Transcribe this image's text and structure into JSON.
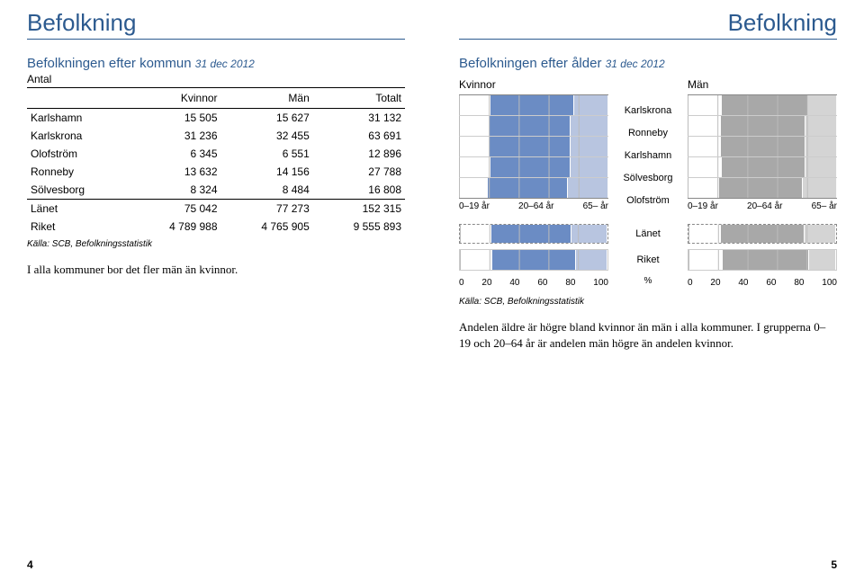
{
  "header_left": "Befolkning",
  "header_right": "Befolkning",
  "left": {
    "section_title": "Befolkningen efter kommun",
    "date": "31 dec 2012",
    "subtitle": "Antal",
    "columns": [
      "",
      "Kvinnor",
      "Män",
      "Totalt"
    ],
    "rows": [
      [
        "Karlshamn",
        "15 505",
        "15 627",
        "31 132"
      ],
      [
        "Karlskrona",
        "31 236",
        "32 455",
        "63 691"
      ],
      [
        "Olofström",
        "6 345",
        "6 551",
        "12 896"
      ],
      [
        "Ronneby",
        "13 632",
        "14 156",
        "27 788"
      ],
      [
        "Sölvesborg",
        "8 324",
        "8 484",
        "16 808"
      ]
    ],
    "totals": [
      [
        "Länet",
        "75 042",
        "77 273",
        "152 315"
      ],
      [
        "Riket",
        "4 789 988",
        "4 765 905",
        "9 555 893"
      ]
    ],
    "source": "Källa: SCB, Befolkningsstatistik",
    "body": "I alla kommuner bor det fler män än kvinnor.",
    "page_num": "4"
  },
  "right": {
    "section_title": "Befolkningen efter ålder",
    "date": "31 dec 2012",
    "col_kvinnor": "Kvinnor",
    "col_man": "Män",
    "row_labels": [
      "Karlskrona",
      "Ronneby",
      "Karlshamn",
      "Sölvesborg",
      "Olofström"
    ],
    "legend": [
      "0–19 år",
      "20–64 år",
      "65– år"
    ],
    "summary_labels": [
      "Länet",
      "Riket"
    ],
    "axis_ticks": [
      "0",
      "20",
      "40",
      "60",
      "80",
      "100"
    ],
    "percent": "%",
    "source": "Källa: SCB, Befolkningsstatistik",
    "body": "Andelen äldre är högre bland kvinnor än män i alla kommuner. I grupperna 0–19 och 20–64 år är andelen män högre än andelen kvinnor.",
    "page_num": "5",
    "chart": {
      "type": "stacked-bar-100pct",
      "colors": {
        "kvinnor": [
          "#ffffff",
          "#6b8cc4",
          "#b8c5e0"
        ],
        "man": [
          "#ffffff",
          "#a8a8a8",
          "#d4d4d4"
        ],
        "border": "#888888",
        "grid": "#bbbbbb"
      },
      "kvinnor": [
        [
          21,
          56,
          23
        ],
        [
          20,
          55,
          25
        ],
        [
          20,
          55,
          25
        ],
        [
          21,
          54,
          25
        ],
        [
          19,
          54,
          27
        ]
      ],
      "man": [
        [
          23,
          58,
          19
        ],
        [
          22,
          57,
          21
        ],
        [
          22,
          57,
          21
        ],
        [
          23,
          56,
          21
        ],
        [
          21,
          56,
          23
        ]
      ],
      "lanet": {
        "kvinnor": [
          21,
          55,
          24
        ],
        "man": [
          22,
          57,
          21
        ]
      },
      "riket": {
        "kvinnor": [
          22,
          57,
          21
        ],
        "man": [
          23,
          59,
          18
        ]
      }
    }
  }
}
